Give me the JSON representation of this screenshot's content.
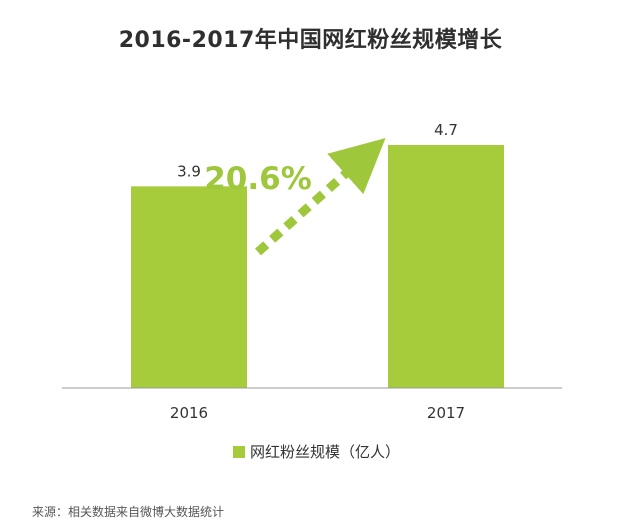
{
  "chart_data": {
    "type": "bar",
    "title": "2016-2017年中国网红粉丝规模增长",
    "categories": [
      "2016",
      "2017"
    ],
    "series": [
      {
        "name": "网红粉丝规模（亿人）",
        "values": [
          3.9,
          4.7
        ]
      }
    ],
    "data_labels": [
      "3.9",
      "4.7"
    ],
    "annotation": {
      "text": "20.6%",
      "style": "dashed-arrow",
      "color": "#9ec73b"
    },
    "ylim": [
      0,
      4.7
    ],
    "xlabel": "",
    "ylabel": "",
    "grid": false,
    "legend": "bottom-center",
    "bar_color": "#a6cc3c"
  },
  "source": "来源：相关数据来自微博大数据统计"
}
